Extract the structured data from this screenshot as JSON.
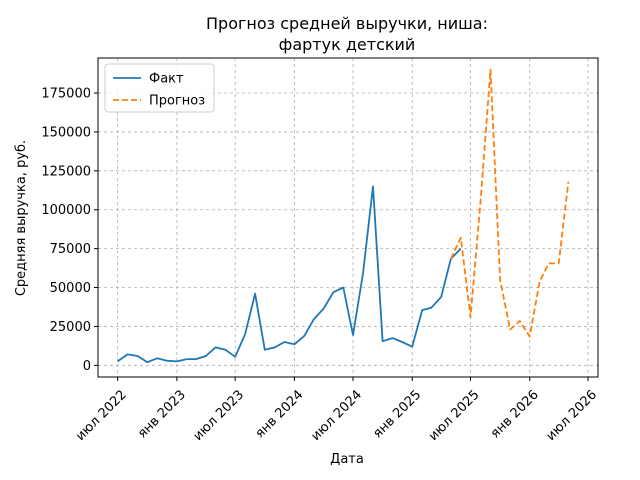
{
  "chart_data": {
    "type": "line",
    "title": [
      "Прогноз средней выручки, ниша:",
      "фартук детский"
    ],
    "xlabel": "Дата",
    "ylabel": "Средняя выручка, руб.",
    "x_ticks": [
      "июл 2022",
      "янв 2023",
      "июл 2023",
      "янв 2024",
      "июл 2024",
      "янв 2025",
      "июл 2025",
      "янв 2026",
      "июл 2026"
    ],
    "y_ticks": [
      0,
      25000,
      50000,
      75000,
      100000,
      125000,
      150000,
      175000
    ],
    "ylim": [
      -7500,
      197500
    ],
    "xlim": [
      "2022-05-01",
      "2026-08-01"
    ],
    "grid": true,
    "legend_position": "top-left",
    "series": [
      {
        "name": "Факт",
        "color": "#1f77b4",
        "style": "solid",
        "points": [
          [
            "2022-07-01",
            2500
          ],
          [
            "2022-08-01",
            7000
          ],
          [
            "2022-09-01",
            6000
          ],
          [
            "2022-10-01",
            2000
          ],
          [
            "2022-11-01",
            4500
          ],
          [
            "2022-12-01",
            3000
          ],
          [
            "2023-01-01",
            2500
          ],
          [
            "2023-02-01",
            4000
          ],
          [
            "2023-03-01",
            4000
          ],
          [
            "2023-04-01",
            6000
          ],
          [
            "2023-05-01",
            11500
          ],
          [
            "2023-06-01",
            10000
          ],
          [
            "2023-07-01",
            5500
          ],
          [
            "2023-08-01",
            20000
          ],
          [
            "2023-09-01",
            46000
          ],
          [
            "2023-10-01",
            10000
          ],
          [
            "2023-11-01",
            11500
          ],
          [
            "2023-12-01",
            15000
          ],
          [
            "2024-01-01",
            13500
          ],
          [
            "2024-02-01",
            19000
          ],
          [
            "2024-03-01",
            29500
          ],
          [
            "2024-04-01",
            36500
          ],
          [
            "2024-05-01",
            47000
          ],
          [
            "2024-06-01",
            50000
          ],
          [
            "2024-07-01",
            19500
          ],
          [
            "2024-08-01",
            59000
          ],
          [
            "2024-09-01",
            115000
          ],
          [
            "2024-10-01",
            15500
          ],
          [
            "2024-11-01",
            17500
          ],
          [
            "2024-12-01",
            15000
          ],
          [
            "2025-01-01",
            12000
          ],
          [
            "2025-02-01",
            35500
          ],
          [
            "2025-03-01",
            37000
          ],
          [
            "2025-04-01",
            44000
          ],
          [
            "2025-05-01",
            68500
          ],
          [
            "2025-06-01",
            75000
          ]
        ]
      },
      {
        "name": "Прогноз",
        "color": "#ff7f0e",
        "style": "dashed",
        "points": [
          [
            "2025-05-01",
            68500
          ],
          [
            "2025-06-01",
            82000
          ],
          [
            "2025-07-01",
            31000
          ],
          [
            "2025-08-01",
            105000
          ],
          [
            "2025-09-01",
            190000
          ],
          [
            "2025-10-01",
            55000
          ],
          [
            "2025-11-01",
            23000
          ],
          [
            "2025-12-01",
            28500
          ],
          [
            "2026-01-01",
            18500
          ],
          [
            "2026-02-01",
            54000
          ],
          [
            "2026-03-01",
            65500
          ],
          [
            "2026-04-01",
            65500
          ],
          [
            "2026-05-01",
            118000
          ]
        ]
      }
    ]
  }
}
